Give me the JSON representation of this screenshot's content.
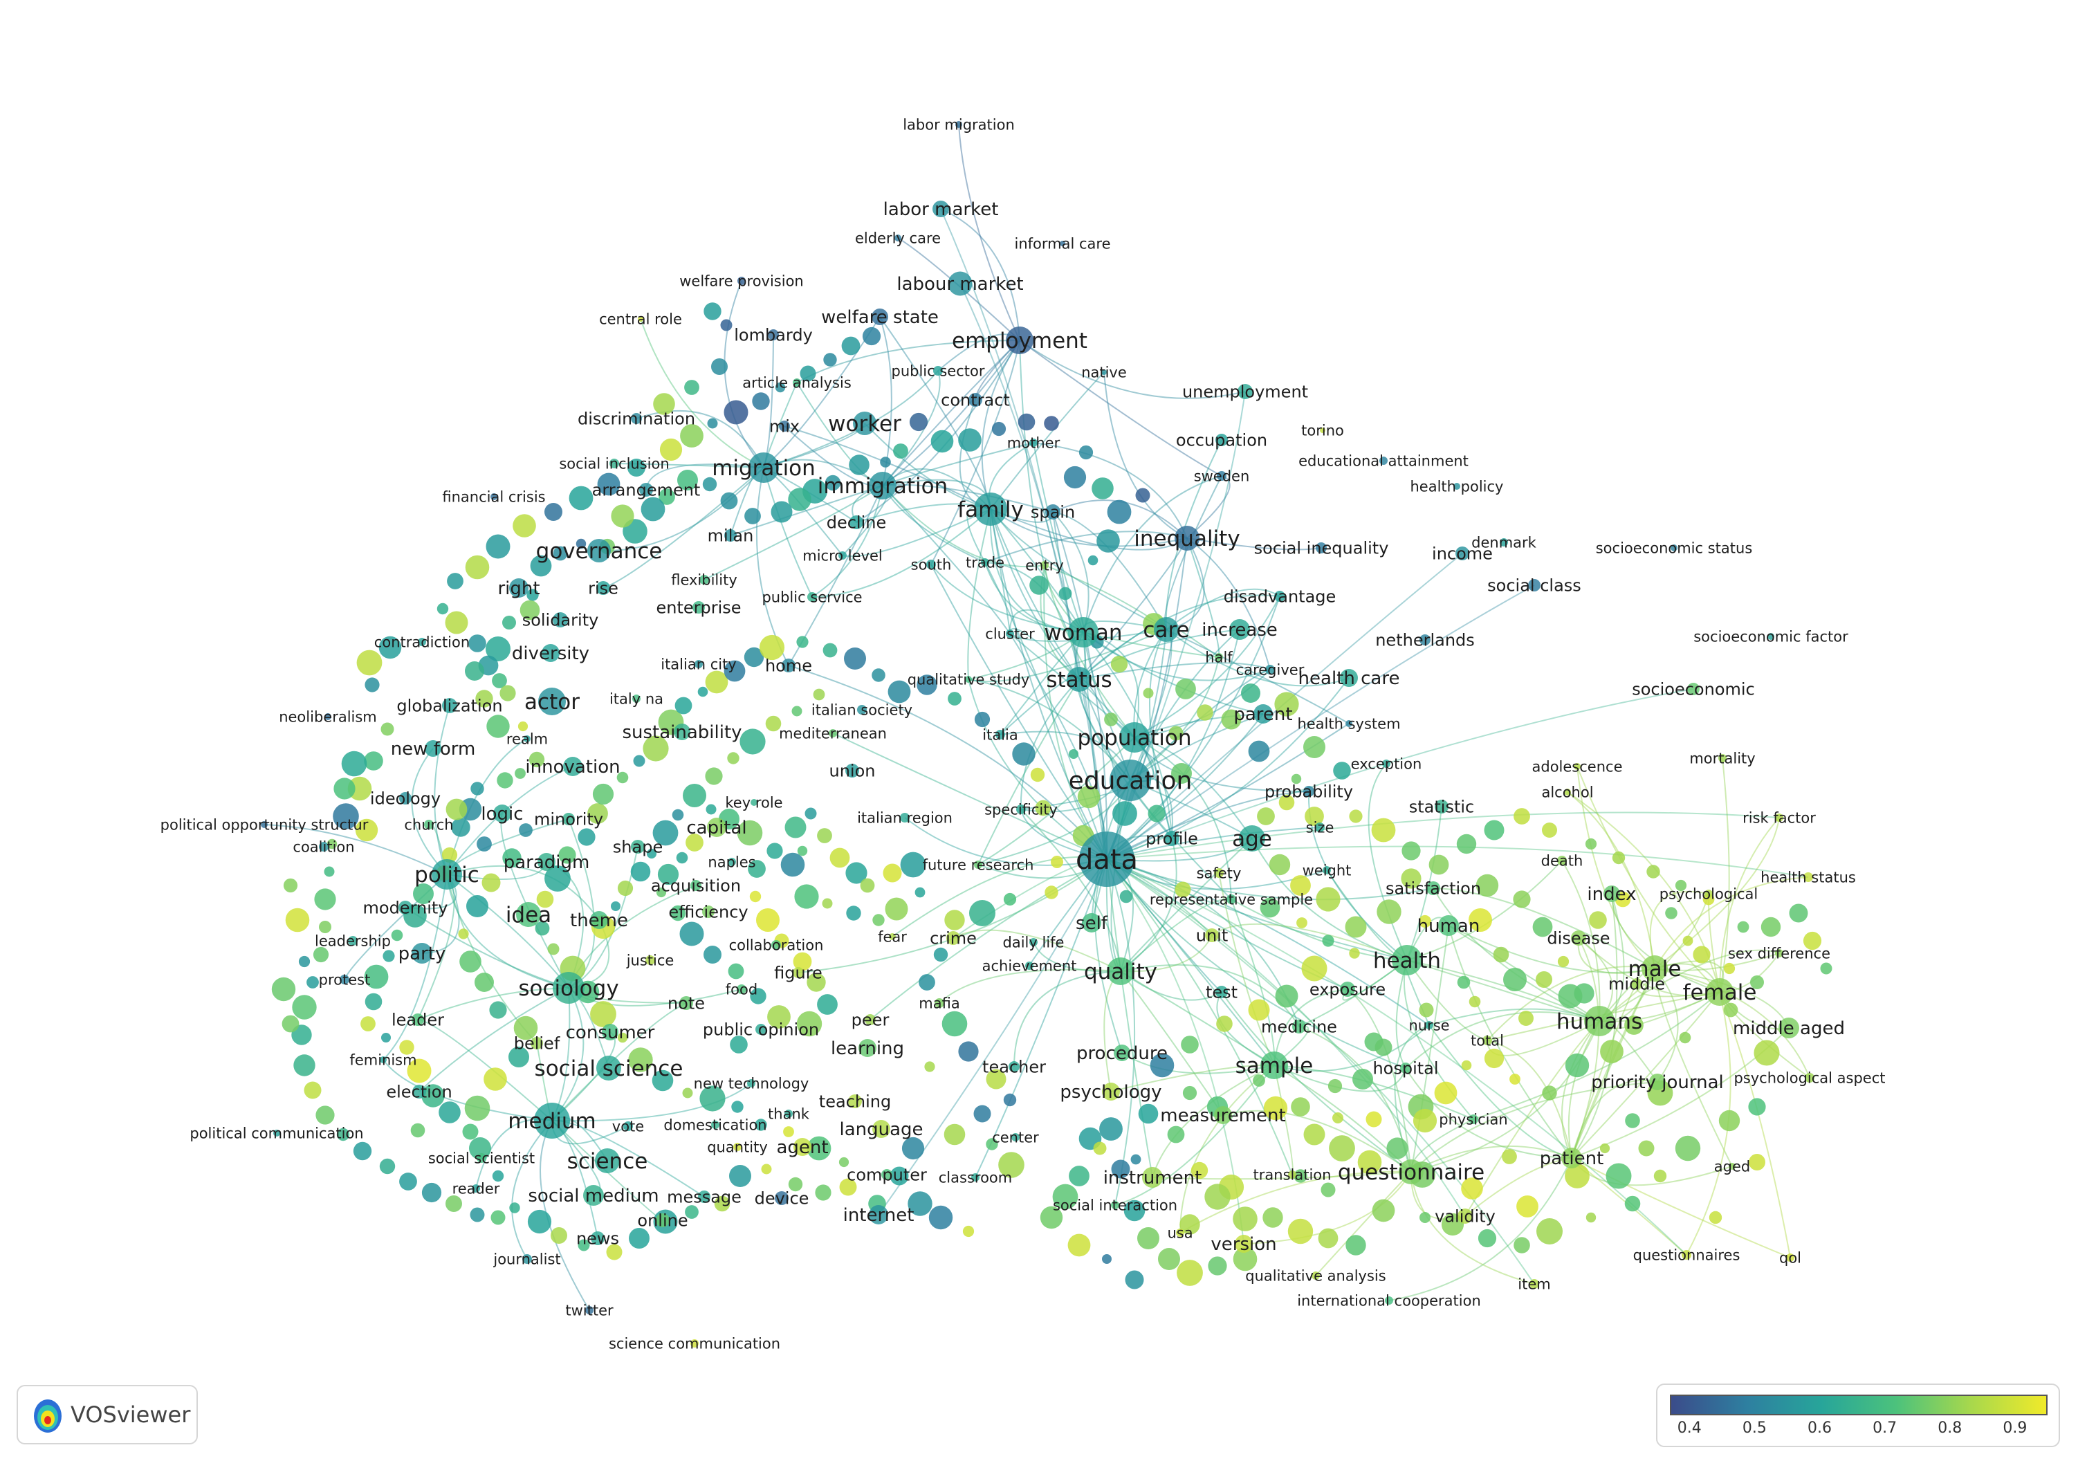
{
  "app": {
    "name": "VOSviewer",
    "logo_icon": "vosviewer-density-icon"
  },
  "color_scale": {
    "ticks": [
      "0.4",
      "0.5",
      "0.6",
      "0.7",
      "0.8",
      "0.9"
    ],
    "range": [
      0.37,
      0.95
    ],
    "stops": [
      "#3b4c8a",
      "#2e7fa0",
      "#27a59a",
      "#4cc27c",
      "#a8d84c",
      "#f0ea2a"
    ]
  },
  "nodes": [
    {
      "label": "labor migration",
      "v": 0.45,
      "w": 10,
      "big": 0
    },
    {
      "label": "labor market",
      "v": 0.55,
      "w": 24,
      "big": 0
    },
    {
      "label": "elderly care",
      "v": 0.48,
      "w": 10,
      "big": 0
    },
    {
      "label": "informal care",
      "v": 0.45,
      "w": 8,
      "big": 0
    },
    {
      "label": "welfare provision",
      "v": 0.42,
      "w": 12,
      "big": 0
    },
    {
      "label": "labour market",
      "v": 0.55,
      "w": 35,
      "big": 0
    },
    {
      "label": "central role",
      "v": 0.9,
      "w": 8,
      "big": 0
    },
    {
      "label": "welfare state",
      "v": 0.45,
      "w": 24,
      "big": 0
    },
    {
      "label": "lombardy",
      "v": 0.44,
      "w": 16,
      "big": 0
    },
    {
      "label": "employment",
      "v": 0.42,
      "w": 40,
      "big": 1
    },
    {
      "label": "native",
      "v": 0.55,
      "w": 8,
      "big": 0
    },
    {
      "label": "public sector",
      "v": 0.6,
      "w": 14,
      "big": 0
    },
    {
      "label": "article analysis",
      "v": 0.7,
      "w": 12,
      "big": 0
    },
    {
      "label": "contract",
      "v": 0.48,
      "w": 20,
      "big": 0
    },
    {
      "label": "unemployment",
      "v": 0.62,
      "w": 22,
      "big": 0
    },
    {
      "label": "discrimination",
      "v": 0.52,
      "w": 16,
      "big": 0
    },
    {
      "label": "mix",
      "v": 0.45,
      "w": 16,
      "big": 0
    },
    {
      "label": "worker",
      "v": 0.55,
      "w": 34,
      "big": 1
    },
    {
      "label": "torino",
      "v": 0.88,
      "w": 8,
      "big": 0
    },
    {
      "label": "mother",
      "v": 0.6,
      "w": 12,
      "big": 0
    },
    {
      "label": "occupation",
      "v": 0.6,
      "w": 18,
      "big": 0
    },
    {
      "label": "educational attainment",
      "v": 0.5,
      "w": 12,
      "big": 0
    },
    {
      "label": "social inclusion",
      "v": 0.65,
      "w": 14,
      "big": 0
    },
    {
      "label": "migration",
      "v": 0.55,
      "w": 44,
      "big": 1
    },
    {
      "label": "sweden",
      "v": 0.48,
      "w": 14,
      "big": 0
    },
    {
      "label": "health policy",
      "v": 0.55,
      "w": 10,
      "big": 0
    },
    {
      "label": "arrangement",
      "v": 0.55,
      "w": 20,
      "big": 0
    },
    {
      "label": "immigration",
      "v": 0.55,
      "w": 40,
      "big": 1
    },
    {
      "label": "financial crisis",
      "v": 0.45,
      "w": 10,
      "big": 0
    },
    {
      "label": "family",
      "v": 0.58,
      "w": 48,
      "big": 1
    },
    {
      "label": "spain",
      "v": 0.5,
      "w": 22,
      "big": 0
    },
    {
      "label": "decline",
      "v": 0.6,
      "w": 20,
      "big": 0
    },
    {
      "label": "milan",
      "v": 0.55,
      "w": 18,
      "big": 0
    },
    {
      "label": "inequality",
      "v": 0.45,
      "w": 36,
      "big": 1
    },
    {
      "label": "denmark",
      "v": 0.6,
      "w": 12,
      "big": 0
    },
    {
      "label": "socioeconomic status",
      "v": 0.5,
      "w": 10,
      "big": 0
    },
    {
      "label": "governance",
      "v": 0.55,
      "w": 34,
      "big": 1
    },
    {
      "label": "social inequality",
      "v": 0.48,
      "w": 16,
      "big": 0
    },
    {
      "label": "income",
      "v": 0.55,
      "w": 20,
      "big": 0
    },
    {
      "label": "micro level",
      "v": 0.6,
      "w": 12,
      "big": 0
    },
    {
      "label": "south",
      "v": 0.6,
      "w": 14,
      "big": 0
    },
    {
      "label": "trade",
      "v": 0.62,
      "w": 12,
      "big": 0
    },
    {
      "label": "entry",
      "v": 0.8,
      "w": 12,
      "big": 0
    },
    {
      "label": "flexibility",
      "v": 0.7,
      "w": 14,
      "big": 0
    },
    {
      "label": "social class",
      "v": 0.48,
      "w": 18,
      "big": 0
    },
    {
      "label": "right",
      "v": 0.55,
      "w": 28,
      "big": 0
    },
    {
      "label": "rise",
      "v": 0.6,
      "w": 20,
      "big": 0
    },
    {
      "label": "public service",
      "v": 0.65,
      "w": 14,
      "big": 0
    },
    {
      "label": "disadvantage",
      "v": 0.6,
      "w": 16,
      "big": 0
    },
    {
      "label": "enterprise",
      "v": 0.68,
      "w": 18,
      "big": 0
    },
    {
      "label": "solidarity",
      "v": 0.58,
      "w": 22,
      "big": 0
    },
    {
      "label": "woman",
      "v": 0.62,
      "w": 44,
      "big": 1
    },
    {
      "label": "care",
      "v": 0.58,
      "w": 36,
      "big": 1
    },
    {
      "label": "increase",
      "v": 0.62,
      "w": 30,
      "big": 0
    },
    {
      "label": "cluster",
      "v": 0.6,
      "w": 12,
      "big": 0
    },
    {
      "label": "contradiction",
      "v": 0.6,
      "w": 12,
      "big": 0
    },
    {
      "label": "netherlands",
      "v": 0.5,
      "w": 16,
      "big": 0
    },
    {
      "label": "socioeconomic factor",
      "v": 0.6,
      "w": 10,
      "big": 0
    },
    {
      "label": "half",
      "v": 0.75,
      "w": 12,
      "big": 0
    },
    {
      "label": "diversity",
      "v": 0.6,
      "w": 26,
      "big": 0
    },
    {
      "label": "caregiver",
      "v": 0.55,
      "w": 14,
      "big": 0
    },
    {
      "label": "home",
      "v": 0.52,
      "w": 20,
      "big": 0
    },
    {
      "label": "italian city",
      "v": 0.55,
      "w": 12,
      "big": 0
    },
    {
      "label": "health care",
      "v": 0.62,
      "w": 26,
      "big": 0
    },
    {
      "label": "qualitative study",
      "v": 0.7,
      "w": 10,
      "big": 0
    },
    {
      "label": "status",
      "v": 0.58,
      "w": 36,
      "big": 1
    },
    {
      "label": "socioeconomic",
      "v": 0.75,
      "w": 18,
      "big": 0
    },
    {
      "label": "actor",
      "v": 0.55,
      "w": 40,
      "big": 1
    },
    {
      "label": "italy na",
      "v": 0.7,
      "w": 12,
      "big": 0
    },
    {
      "label": "globalization",
      "v": 0.6,
      "w": 22,
      "big": 0
    },
    {
      "label": "neoliberalism",
      "v": 0.45,
      "w": 10,
      "big": 0
    },
    {
      "label": "italian society",
      "v": 0.55,
      "w": 14,
      "big": 0
    },
    {
      "label": "parent",
      "v": 0.58,
      "w": 28,
      "big": 0
    },
    {
      "label": "health system",
      "v": 0.5,
      "w": 10,
      "big": 0
    },
    {
      "label": "realm",
      "v": 0.6,
      "w": 10,
      "big": 0
    },
    {
      "label": "sustainability",
      "v": 0.65,
      "w": 24,
      "big": 0
    },
    {
      "label": "mediterranean",
      "v": 0.75,
      "w": 12,
      "big": 0
    },
    {
      "label": "italia",
      "v": 0.6,
      "w": 14,
      "big": 0
    },
    {
      "label": "population",
      "v": 0.6,
      "w": 44,
      "big": 1
    },
    {
      "label": "new form",
      "v": 0.6,
      "w": 24,
      "big": 0
    },
    {
      "label": "exception",
      "v": 0.62,
      "w": 12,
      "big": 0
    },
    {
      "label": "adolescence",
      "v": 0.85,
      "w": 10,
      "big": 0
    },
    {
      "label": "mortality",
      "v": 0.82,
      "w": 12,
      "big": 0
    },
    {
      "label": "innovation",
      "v": 0.62,
      "w": 28,
      "big": 0
    },
    {
      "label": "union",
      "v": 0.58,
      "w": 20,
      "big": 0
    },
    {
      "label": "education",
      "v": 0.55,
      "w": 60,
      "big": 1
    },
    {
      "label": "alcohol",
      "v": 0.85,
      "w": 10,
      "big": 0
    },
    {
      "label": "ideology",
      "v": 0.55,
      "w": 18,
      "big": 0
    },
    {
      "label": "probability",
      "v": 0.5,
      "w": 16,
      "big": 0
    },
    {
      "label": "logic",
      "v": 0.62,
      "w": 26,
      "big": 0
    },
    {
      "label": "key role",
      "v": 0.65,
      "w": 10,
      "big": 0
    },
    {
      "label": "specificity",
      "v": 0.62,
      "w": 14,
      "big": 0
    },
    {
      "label": "statistic",
      "v": 0.65,
      "w": 20,
      "big": 0
    },
    {
      "label": "political opportunity structur",
      "v": 0.45,
      "w": 10,
      "big": 0
    },
    {
      "label": "church",
      "v": 0.72,
      "w": 14,
      "big": 0
    },
    {
      "label": "minority",
      "v": 0.65,
      "w": 18,
      "big": 0
    },
    {
      "label": "italian region",
      "v": 0.62,
      "w": 14,
      "big": 0
    },
    {
      "label": "risk factor",
      "v": 0.85,
      "w": 12,
      "big": 0
    },
    {
      "label": "capital",
      "v": 0.8,
      "w": 28,
      "big": 0
    },
    {
      "label": "coalition",
      "v": 0.55,
      "w": 14,
      "big": 0
    },
    {
      "label": "shape",
      "v": 0.65,
      "w": 20,
      "big": 0
    },
    {
      "label": "size",
      "v": 0.62,
      "w": 14,
      "big": 0
    },
    {
      "label": "data",
      "v": 0.55,
      "w": 80,
      "big": 1
    },
    {
      "label": "profile",
      "v": 0.6,
      "w": 22,
      "big": 0
    },
    {
      "label": "age",
      "v": 0.62,
      "w": 38,
      "big": 1
    },
    {
      "label": "paradigm",
      "v": 0.65,
      "w": 26,
      "big": 0
    },
    {
      "label": "naples",
      "v": 0.62,
      "w": 12,
      "big": 0
    },
    {
      "label": "future research",
      "v": 0.75,
      "w": 12,
      "big": 0
    },
    {
      "label": "death",
      "v": 0.8,
      "w": 14,
      "big": 0
    },
    {
      "label": "health status",
      "v": 0.88,
      "w": 14,
      "big": 0
    },
    {
      "label": "politic",
      "v": 0.6,
      "w": 44,
      "big": 1
    },
    {
      "label": "safety",
      "v": 0.85,
      "w": 14,
      "big": 0
    },
    {
      "label": "weight",
      "v": 0.62,
      "w": 12,
      "big": 0
    },
    {
      "label": "acquisition",
      "v": 0.72,
      "w": 16,
      "big": 0
    },
    {
      "label": "satisfaction",
      "v": 0.72,
      "w": 20,
      "big": 0
    },
    {
      "label": "index",
      "v": 0.75,
      "w": 24,
      "big": 0
    },
    {
      "label": "psychological",
      "v": 0.85,
      "w": 12,
      "big": 0
    },
    {
      "label": "modernity",
      "v": 0.62,
      "w": 20,
      "big": 0
    },
    {
      "label": "representative sample",
      "v": 0.7,
      "w": 14,
      "big": 0
    },
    {
      "label": "efficiency",
      "v": 0.78,
      "w": 18,
      "big": 0
    },
    {
      "label": "idea",
      "v": 0.72,
      "w": 36,
      "big": 1
    },
    {
      "label": "theme",
      "v": 0.7,
      "w": 26,
      "big": 0
    },
    {
      "label": "human",
      "v": 0.72,
      "w": 30,
      "big": 0
    },
    {
      "label": "fear",
      "v": 0.85,
      "w": 10,
      "big": 0
    },
    {
      "label": "crime",
      "v": 0.85,
      "w": 20,
      "big": 0
    },
    {
      "label": "self",
      "v": 0.7,
      "w": 28,
      "big": 0
    },
    {
      "label": "unit",
      "v": 0.85,
      "w": 20,
      "big": 0
    },
    {
      "label": "leadership",
      "v": 0.62,
      "w": 14,
      "big": 0
    },
    {
      "label": "collaboration",
      "v": 0.72,
      "w": 14,
      "big": 0
    },
    {
      "label": "daily life",
      "v": 0.62,
      "w": 12,
      "big": 0
    },
    {
      "label": "disease",
      "v": 0.8,
      "w": 22,
      "big": 0
    },
    {
      "label": "sex difference",
      "v": 0.8,
      "w": 12,
      "big": 0
    },
    {
      "label": "party",
      "v": 0.55,
      "w": 30,
      "big": 0
    },
    {
      "label": "justice",
      "v": 0.85,
      "w": 14,
      "big": 0
    },
    {
      "label": "health",
      "v": 0.72,
      "w": 44,
      "big": 1
    },
    {
      "label": "male",
      "v": 0.8,
      "w": 38,
      "big": 1
    },
    {
      "label": "achievement",
      "v": 0.62,
      "w": 12,
      "big": 0
    },
    {
      "label": "figure",
      "v": 0.85,
      "w": 16,
      "big": 0
    },
    {
      "label": "quality",
      "v": 0.72,
      "w": 40,
      "big": 1
    },
    {
      "label": "protest",
      "v": 0.5,
      "w": 14,
      "big": 0
    },
    {
      "label": "food",
      "v": 0.72,
      "w": 14,
      "big": 0
    },
    {
      "label": "test",
      "v": 0.62,
      "w": 18,
      "big": 0
    },
    {
      "label": "exposure",
      "v": 0.72,
      "w": 22,
      "big": 0
    },
    {
      "label": "sociology",
      "v": 0.65,
      "w": 46,
      "big": 1
    },
    {
      "label": "middle",
      "v": 0.82,
      "w": 16,
      "big": 0
    },
    {
      "label": "female",
      "v": 0.8,
      "w": 40,
      "big": 1
    },
    {
      "label": "mafia",
      "v": 0.78,
      "w": 14,
      "big": 0
    },
    {
      "label": "note",
      "v": 0.75,
      "w": 20,
      "big": 0
    },
    {
      "label": "leader",
      "v": 0.72,
      "w": 18,
      "big": 0
    },
    {
      "label": "humans",
      "v": 0.78,
      "w": 44,
      "big": 1
    },
    {
      "label": "medicine",
      "v": 0.72,
      "w": 20,
      "big": 0
    },
    {
      "label": "public opinion",
      "v": 0.62,
      "w": 16,
      "big": 0
    },
    {
      "label": "peer",
      "v": 0.82,
      "w": 16,
      "big": 0
    },
    {
      "label": "nurse",
      "v": 0.62,
      "w": 12,
      "big": 0
    },
    {
      "label": "middle aged",
      "v": 0.78,
      "w": 30,
      "big": 0
    },
    {
      "label": "consumer",
      "v": 0.7,
      "w": 24,
      "big": 0
    },
    {
      "label": "belief",
      "v": 0.82,
      "w": 18,
      "big": 0
    },
    {
      "label": "total",
      "v": 0.82,
      "w": 14,
      "big": 0
    },
    {
      "label": "learning",
      "v": 0.75,
      "w": 26,
      "big": 0
    },
    {
      "label": "procedure",
      "v": 0.72,
      "w": 24,
      "big": 0
    },
    {
      "label": "feminism",
      "v": 0.6,
      "w": 10,
      "big": 0
    },
    {
      "label": "social science",
      "v": 0.62,
      "w": 36,
      "big": 1
    },
    {
      "label": "sample",
      "v": 0.72,
      "w": 40,
      "big": 1
    },
    {
      "label": "hospital",
      "v": 0.72,
      "w": 16,
      "big": 0
    },
    {
      "label": "teacher",
      "v": 0.62,
      "w": 16,
      "big": 0
    },
    {
      "label": "priority journal",
      "v": 0.78,
      "w": 24,
      "big": 0
    },
    {
      "label": "psychological aspect",
      "v": 0.82,
      "w": 14,
      "big": 0
    },
    {
      "label": "new technology",
      "v": 0.62,
      "w": 12,
      "big": 0
    },
    {
      "label": "election",
      "v": 0.62,
      "w": 20,
      "big": 0
    },
    {
      "label": "psychology",
      "v": 0.85,
      "w": 26,
      "big": 0
    },
    {
      "label": "teaching",
      "v": 0.85,
      "w": 20,
      "big": 0
    },
    {
      "label": "measurement",
      "v": 0.78,
      "w": 26,
      "big": 0
    },
    {
      "label": "thank",
      "v": 0.62,
      "w": 12,
      "big": 0
    },
    {
      "label": "physician",
      "v": 0.72,
      "w": 14,
      "big": 0
    },
    {
      "label": "medium",
      "v": 0.6,
      "w": 52,
      "big": 1
    },
    {
      "label": "political communication",
      "v": 0.6,
      "w": 10,
      "big": 0
    },
    {
      "label": "vote",
      "v": 0.6,
      "w": 14,
      "big": 0
    },
    {
      "label": "domestication",
      "v": 0.65,
      "w": 12,
      "big": 0
    },
    {
      "label": "language",
      "v": 0.85,
      "w": 26,
      "big": 0
    },
    {
      "label": "center",
      "v": 0.62,
      "w": 12,
      "big": 0
    },
    {
      "label": "agent",
      "v": 0.88,
      "w": 26,
      "big": 0
    },
    {
      "label": "patient",
      "v": 0.8,
      "w": 30,
      "big": 0
    },
    {
      "label": "quantity",
      "v": 0.9,
      "w": 12,
      "big": 0
    },
    {
      "label": "social scientist",
      "v": 0.7,
      "w": 14,
      "big": 0
    },
    {
      "label": "science",
      "v": 0.62,
      "w": 36,
      "big": 1
    },
    {
      "label": "aged",
      "v": 0.8,
      "w": 10,
      "big": 0
    },
    {
      "label": "computer",
      "v": 0.72,
      "w": 16,
      "big": 0
    },
    {
      "label": "classroom",
      "v": 0.62,
      "w": 12,
      "big": 0
    },
    {
      "label": "instrument",
      "v": 0.82,
      "w": 30,
      "big": 0
    },
    {
      "label": "translation",
      "v": 0.85,
      "w": 12,
      "big": 0
    },
    {
      "label": "questionnaire",
      "v": 0.78,
      "w": 36,
      "big": 1
    },
    {
      "label": "reader",
      "v": 0.6,
      "w": 12,
      "big": 0
    },
    {
      "label": "social medium",
      "v": 0.65,
      "w": 30,
      "big": 0
    },
    {
      "label": "message",
      "v": 0.62,
      "w": 18,
      "big": 0
    },
    {
      "label": "device",
      "v": 0.45,
      "w": 20,
      "big": 0
    },
    {
      "label": "social interaction",
      "v": 0.72,
      "w": 12,
      "big": 0
    },
    {
      "label": "internet",
      "v": 0.55,
      "w": 28,
      "big": 0
    },
    {
      "label": "validity",
      "v": 0.85,
      "w": 22,
      "big": 0
    },
    {
      "label": "online",
      "v": 0.75,
      "w": 20,
      "big": 0
    },
    {
      "label": "news",
      "v": 0.62,
      "w": 20,
      "big": 0
    },
    {
      "label": "usa",
      "v": 0.88,
      "w": 12,
      "big": 0
    },
    {
      "label": "version",
      "v": 0.88,
      "w": 26,
      "big": 0
    },
    {
      "label": "questionnaires",
      "v": 0.88,
      "w": 14,
      "big": 0
    },
    {
      "label": "qol",
      "v": 0.9,
      "w": 12,
      "big": 0
    },
    {
      "label": "journalist",
      "v": 0.55,
      "w": 14,
      "big": 0
    },
    {
      "label": "qualitative analysis",
      "v": 0.85,
      "w": 12,
      "big": 0
    },
    {
      "label": "item",
      "v": 0.85,
      "w": 14,
      "big": 0
    },
    {
      "label": "international cooperation",
      "v": 0.7,
      "w": 12,
      "big": 0
    },
    {
      "label": "twitter",
      "v": 0.45,
      "w": 12,
      "big": 0
    },
    {
      "label": "science communication",
      "v": 0.9,
      "w": 12,
      "big": 0
    }
  ]
}
